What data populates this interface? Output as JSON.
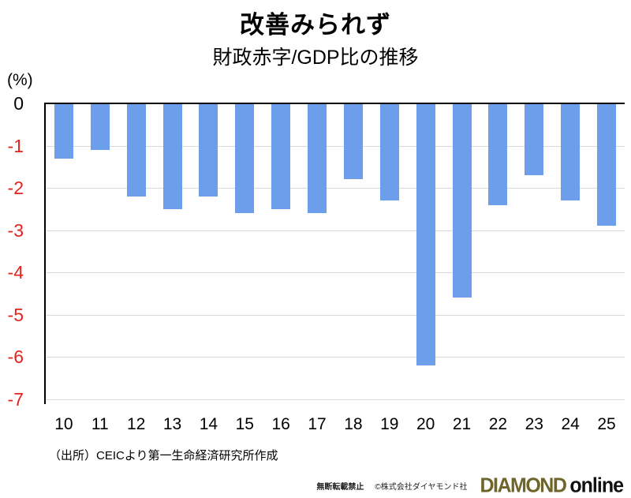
{
  "header": {
    "title": "改善みられず",
    "subtitle": "財政赤字/GDP比の推移"
  },
  "chart_data": {
    "type": "bar",
    "title": "改善みられず",
    "subtitle": "財政赤字/GDP比の推移",
    "unit_label": "(%)",
    "categories": [
      "10",
      "11",
      "12",
      "13",
      "14",
      "15",
      "16",
      "17",
      "18",
      "19",
      "20",
      "21",
      "22",
      "23",
      "24",
      "25"
    ],
    "values": [
      -1.3,
      -1.1,
      -2.2,
      -2.5,
      -2.2,
      -2.6,
      -2.5,
      -2.6,
      -1.8,
      -2.3,
      -6.2,
      -4.6,
      -2.4,
      -1.7,
      -2.3,
      -2.9
    ],
    "ylim": [
      0,
      -7
    ],
    "yticks": [
      0,
      -1,
      -2,
      -3,
      -4,
      -5,
      -6,
      -7
    ],
    "grid": true,
    "legend": "none",
    "bar_color": "#6d9eeb",
    "grid_color": "#d9d9d9",
    "axis_color": "#000000",
    "ytick_color_zero": "#000000",
    "ytick_color_negative": "#e3231e"
  },
  "footer": {
    "source": "（出所）CEICより第一生命経済研究所作成",
    "no_reproduction": "無断転載禁止",
    "copyright": "©株式会社ダイヤモンド社",
    "logo": {
      "diamond": "DIAMOND",
      "online": "online",
      "diamond_color": "#6d652a"
    }
  }
}
